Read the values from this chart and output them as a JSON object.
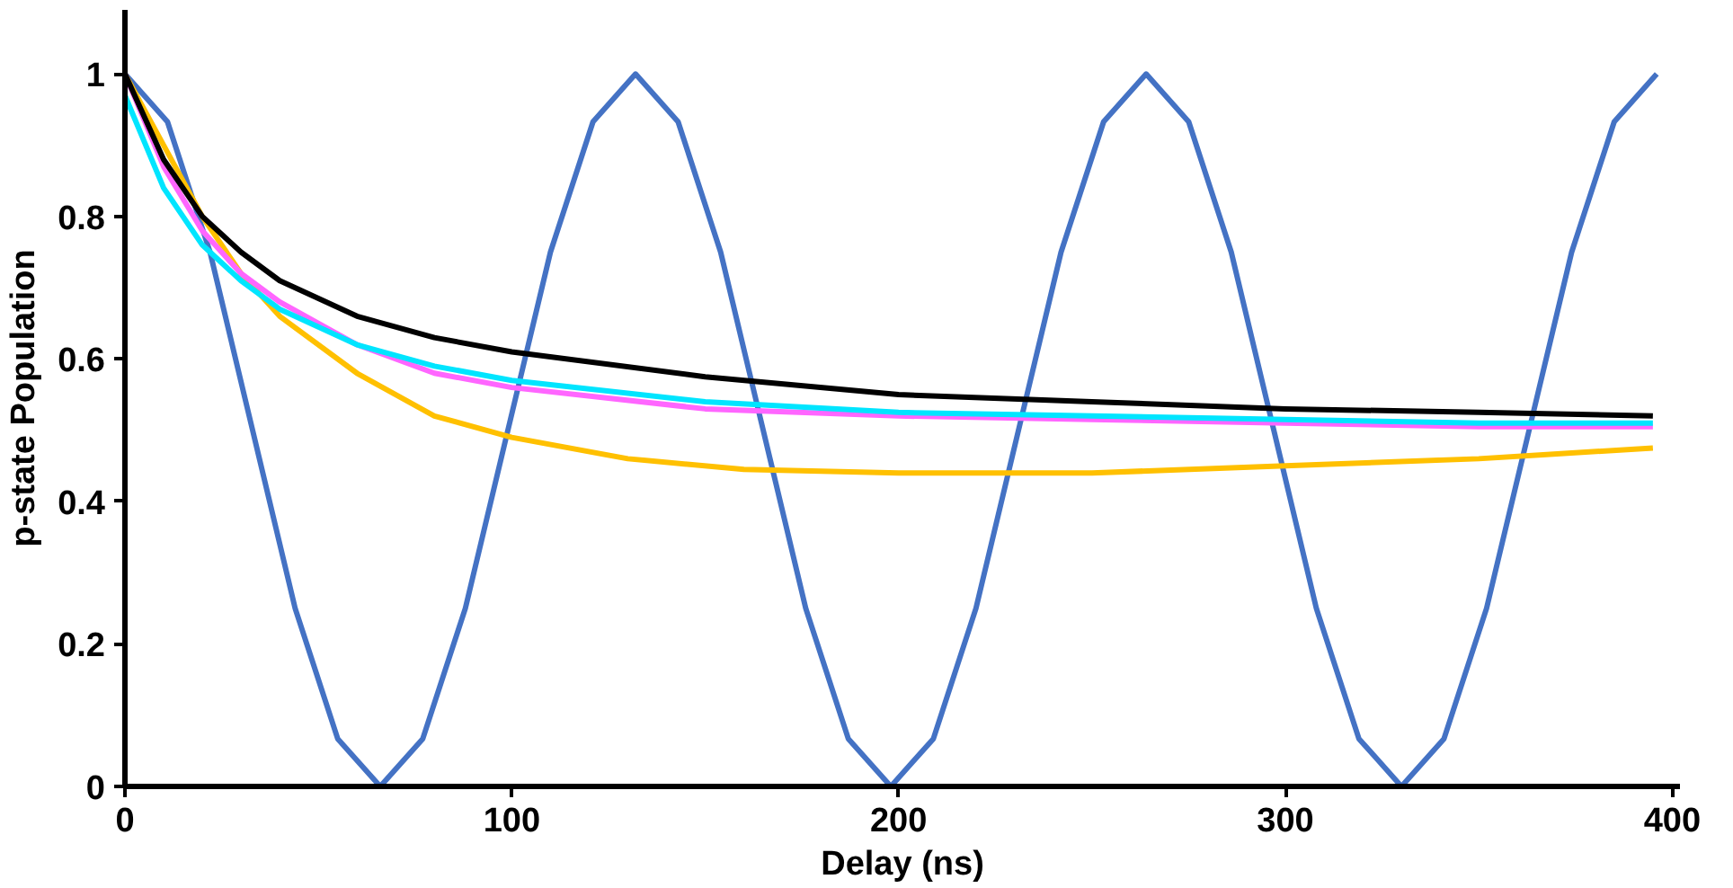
{
  "chart_data": {
    "type": "line",
    "xlabel": "Delay (ns)",
    "ylabel": "p-state Population",
    "xlim": [
      0,
      402
    ],
    "ylim": [
      0,
      1.09
    ],
    "xticks": [
      0,
      100,
      200,
      300,
      400
    ],
    "yticks": [
      0,
      0.2,
      0.4,
      0.6,
      0.8,
      1
    ],
    "grid": false,
    "marker": "none",
    "line_style": "solid",
    "series": [
      {
        "color": "#4472c4",
        "x": [
          0,
          11,
          22,
          33,
          44,
          55,
          66,
          77,
          88,
          99,
          110,
          121,
          132,
          143,
          154,
          165,
          176,
          187,
          198,
          209,
          220,
          231,
          242,
          253,
          264,
          275,
          286,
          297,
          308,
          319,
          330,
          341,
          352,
          363,
          374,
          385,
          396
        ],
        "values": [
          1,
          0.933,
          0.75,
          0.5,
          0.25,
          0.067,
          0,
          0.067,
          0.25,
          0.5,
          0.75,
          0.933,
          1,
          0.933,
          0.75,
          0.5,
          0.25,
          0.067,
          0,
          0.067,
          0.25,
          0.5,
          0.75,
          0.933,
          1,
          0.933,
          0.75,
          0.5,
          0.25,
          0.067,
          0,
          0.067,
          0.25,
          0.5,
          0.75,
          0.933,
          1
        ]
      },
      {
        "color": "#ffc000",
        "x": [
          0,
          10,
          20,
          30,
          40,
          60,
          80,
          100,
          130,
          160,
          200,
          250,
          300,
          350,
          395
        ],
        "values": [
          1,
          0.9,
          0.8,
          0.72,
          0.66,
          0.58,
          0.52,
          0.49,
          0.46,
          0.445,
          0.44,
          0.44,
          0.45,
          0.46,
          0.475
        ]
      },
      {
        "color": "#ff66ff",
        "x": [
          0,
          10,
          20,
          30,
          40,
          60,
          80,
          100,
          150,
          200,
          250,
          300,
          350,
          395
        ],
        "values": [
          1,
          0.87,
          0.78,
          0.72,
          0.68,
          0.62,
          0.58,
          0.56,
          0.53,
          0.52,
          0.515,
          0.51,
          0.505,
          0.505
        ]
      },
      {
        "color": "#000000",
        "x": [
          0,
          10,
          20,
          30,
          40,
          60,
          80,
          100,
          150,
          200,
          250,
          300,
          350,
          395
        ],
        "values": [
          1,
          0.88,
          0.8,
          0.75,
          0.71,
          0.66,
          0.63,
          0.61,
          0.575,
          0.55,
          0.54,
          0.53,
          0.525,
          0.52
        ]
      },
      {
        "color": "#00e5ff",
        "x": [
          0,
          10,
          20,
          30,
          40,
          60,
          80,
          100,
          150,
          200,
          250,
          300,
          350,
          395
        ],
        "values": [
          0.97,
          0.84,
          0.76,
          0.71,
          0.67,
          0.62,
          0.59,
          0.57,
          0.54,
          0.525,
          0.52,
          0.515,
          0.51,
          0.51
        ]
      }
    ]
  }
}
